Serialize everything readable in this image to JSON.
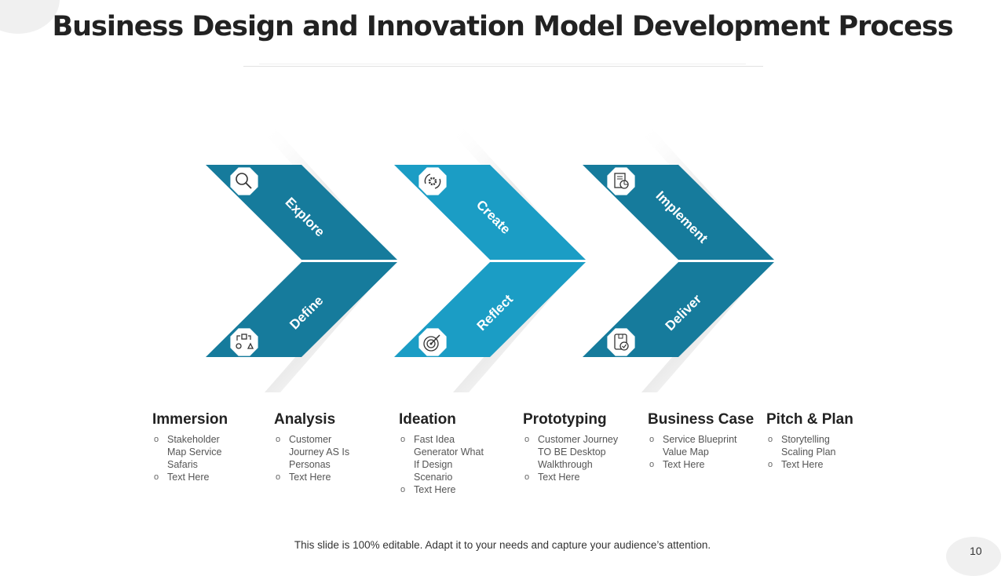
{
  "title": "Business Design and Innovation Model Development Process",
  "colors": {
    "dark_teal": "#167b9c",
    "light_teal": "#1b9dc5"
  },
  "chevrons": [
    {
      "top_label": "Explore",
      "bottom_label": "Define",
      "top_icon": "magnifier-icon",
      "bottom_icon": "flowchart-shapes-icon",
      "color": "#167b9c"
    },
    {
      "top_label": "Create",
      "bottom_label": "Reflect",
      "top_icon": "gear-cycle-icon",
      "bottom_icon": "target-icon",
      "color": "#1b9dc5"
    },
    {
      "top_label": "Implement",
      "bottom_label": "Deliver",
      "top_icon": "report-chart-icon",
      "bottom_icon": "package-check-icon",
      "color": "#167b9c"
    }
  ],
  "stages": [
    {
      "heading": "Immersion",
      "items": [
        "Stakeholder Map Service  Safaris",
        "Text Here"
      ]
    },
    {
      "heading": "Analysis",
      "items": [
        "Customer Journey AS Is Personas",
        "Text Here"
      ]
    },
    {
      "heading": "Ideation",
      "items": [
        "Fast Idea Generator  What If Design Scenario",
        "Text Here"
      ]
    },
    {
      "heading": "Prototyping",
      "items": [
        "Customer Journey TO BE Desktop Walkthrough",
        "Text Here"
      ]
    },
    {
      "heading": "Business Case",
      "items": [
        "Service  Blueprint Value Map",
        "Text Here"
      ]
    },
    {
      "heading": "Pitch & Plan",
      "items": [
        "Storytelling Scaling Plan",
        "Text Here"
      ]
    }
  ],
  "footer": "This slide is 100% editable. Adapt it to your needs and capture your audience’s attention.",
  "page_number": "10"
}
